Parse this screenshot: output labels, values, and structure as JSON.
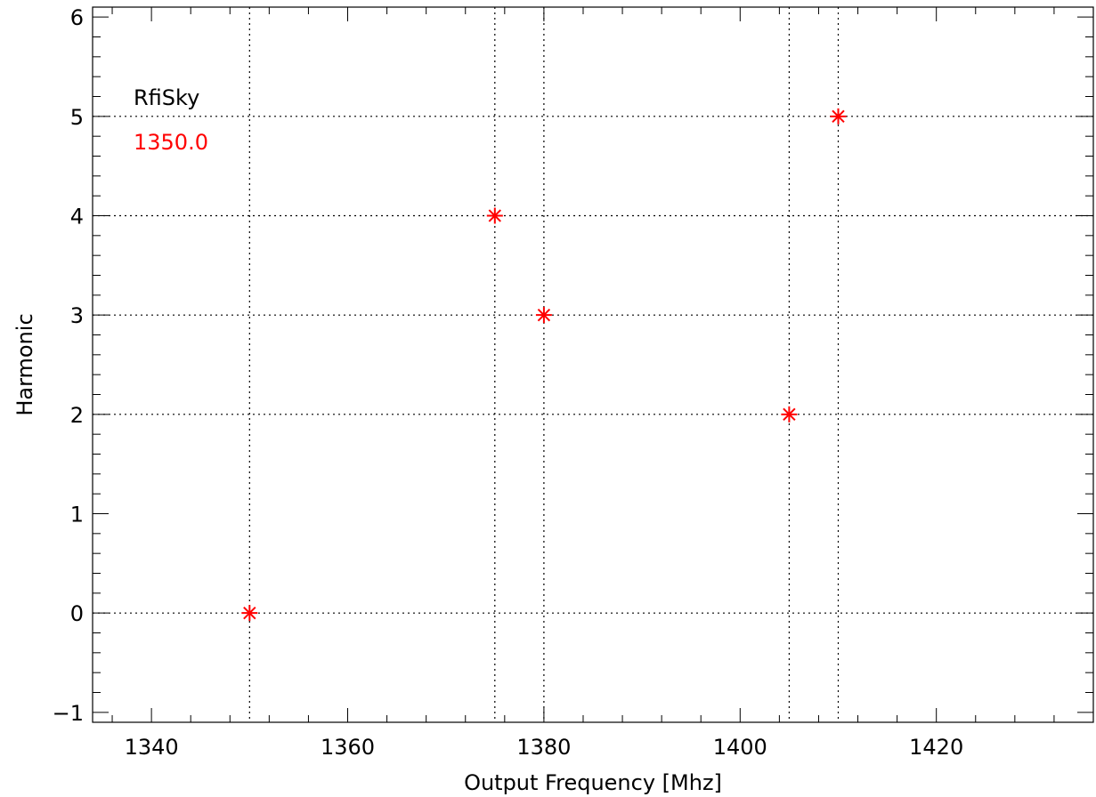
{
  "chart_data": {
    "type": "scatter",
    "title": "",
    "xlabel": "Output Frequency [Mhz]",
    "ylabel": "Harmonic",
    "xlim": [
      1334,
      1436
    ],
    "ylim": [
      -1.1,
      6.1
    ],
    "xticks": [
      1340,
      1360,
      1380,
      1400,
      1420
    ],
    "yticks": [
      -1,
      0,
      1,
      2,
      3,
      4,
      5,
      6
    ],
    "xtick_labels": [
      "1340",
      "1360",
      "1380",
      "1400",
      "1420"
    ],
    "ytick_labels": [
      "−1",
      "0",
      "1",
      "2",
      "3",
      "4",
      "5",
      "6"
    ],
    "legend": {
      "placement": "top-left",
      "entries": [
        {
          "text": "RfiSky",
          "color": "#000000"
        },
        {
          "text": "1350.0",
          "color": "#ff0000"
        }
      ]
    },
    "series": [
      {
        "marker": "asterisk",
        "color": "#ff0000",
        "points": [
          {
            "x": 1350,
            "y": 0
          },
          {
            "x": 1375,
            "y": 4
          },
          {
            "x": 1380,
            "y": 3
          },
          {
            "x": 1405,
            "y": 2
          },
          {
            "x": 1410,
            "y": 5
          }
        ]
      }
    ],
    "grid": true,
    "grid_style": "dotted"
  }
}
